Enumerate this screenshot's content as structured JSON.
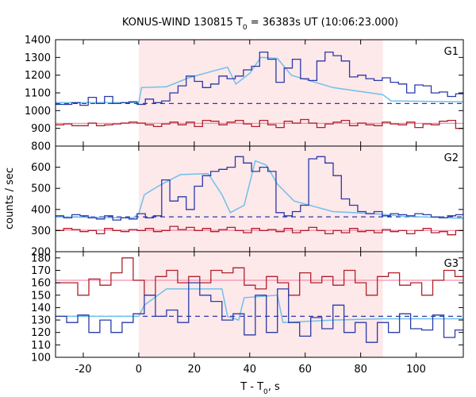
{
  "chart_data": {
    "type": "line",
    "title": {
      "prefix": "KONUS-WIND 130815 T",
      "sub": "0",
      "suffix": " = 36383s UT (10:06:23.000)"
    },
    "xlabel": {
      "prefix": "T - T",
      "sub": "0",
      "suffix": ", s"
    },
    "ylabel": "counts / sec",
    "xlim": [
      -30,
      117
    ],
    "xticks": [
      -20,
      0,
      20,
      40,
      60,
      80,
      100
    ],
    "shaded_interval": [
      0,
      88
    ],
    "colors": {
      "shade": "#fde8ea",
      "signal": "#2a3aa8",
      "signal_model": "#6ec1ea",
      "background": "#b0212a",
      "background_model": "#f48fb1"
    },
    "panels": [
      {
        "label": "G1",
        "ylim": [
          800,
          1400
        ],
        "yticks": [
          800,
          900,
          1000,
          1100,
          1200,
          1300,
          1400
        ],
        "bg_level": 1040,
        "x_start": -30,
        "bin": 2.944,
        "signal": [
          1035,
          1035,
          1045,
          1030,
          1075,
          1040,
          1080,
          1040,
          1045,
          1050,
          1035,
          1065,
          1045,
          1055,
          1100,
          1140,
          1195,
          1165,
          1130,
          1150,
          1195,
          1180,
          1195,
          1230,
          1250,
          1330,
          1290,
          1160,
          1240,
          1290,
          1180,
          1170,
          1280,
          1330,
          1310,
          1280,
          1190,
          1200,
          1180,
          1170,
          1185,
          1160,
          1150,
          1100,
          1145,
          1140,
          1100,
          1105,
          1080,
          1095,
          1075,
          1070,
          1085,
          1040,
          1050,
          1055,
          1040,
          1050,
          1060,
          1055,
          1045,
          1040,
          1040,
          1050,
          1040,
          1040
        ],
        "signal_model": [
          [
            -30,
            1045
          ],
          [
            0,
            1045
          ],
          [
            1,
            1130
          ],
          [
            10,
            1135
          ],
          [
            18,
            1185
          ],
          [
            26,
            1220
          ],
          [
            32,
            1245
          ],
          [
            35,
            1150
          ],
          [
            40,
            1210
          ],
          [
            44,
            1300
          ],
          [
            50,
            1295
          ],
          [
            55,
            1200
          ],
          [
            70,
            1130
          ],
          [
            88,
            1090
          ],
          [
            91,
            1055
          ],
          [
            117,
            1050
          ]
        ],
        "background": [
          920,
          925,
          915,
          915,
          930,
          915,
          920,
          925,
          930,
          935,
          930,
          920,
          910,
          925,
          935,
          920,
          935,
          910,
          945,
          940,
          920,
          935,
          945,
          925,
          910,
          945,
          920,
          905,
          940,
          930,
          950,
          930,
          905,
          925,
          935,
          945,
          915,
          930,
          920,
          915,
          935,
          925,
          920,
          935,
          905,
          925,
          920,
          940,
          945,
          900,
          915,
          925,
          920,
          905,
          940,
          915,
          930,
          935,
          945,
          925,
          940,
          915,
          930,
          930,
          920,
          925
        ],
        "background_model": [
          [
            -30,
            928
          ],
          [
            117,
            928
          ]
        ]
      },
      {
        "label": "G2",
        "ylim": [
          200,
          700
        ],
        "yticks": [
          200,
          300,
          400,
          500,
          600
        ],
        "bg_level": 365,
        "x_start": -30,
        "bin": 2.944,
        "signal": [
          370,
          360,
          375,
          370,
          360,
          355,
          370,
          350,
          360,
          355,
          380,
          360,
          370,
          540,
          440,
          460,
          400,
          510,
          560,
          580,
          590,
          600,
          650,
          620,
          580,
          600,
          580,
          385,
          370,
          390,
          420,
          640,
          650,
          620,
          560,
          450,
          420,
          390,
          380,
          390,
          370,
          380,
          375,
          370,
          380,
          375,
          365,
          360,
          370,
          375,
          380,
          370,
          360,
          375,
          370,
          380,
          355,
          375,
          370,
          360,
          370,
          350,
          355,
          360,
          375,
          350
        ],
        "signal_model": [
          [
            -30,
            365
          ],
          [
            -2,
            360
          ],
          [
            0,
            380
          ],
          [
            2,
            470
          ],
          [
            7,
            510
          ],
          [
            15,
            565
          ],
          [
            25,
            570
          ],
          [
            30,
            470
          ],
          [
            33,
            385
          ],
          [
            38,
            420
          ],
          [
            42,
            630
          ],
          [
            46,
            610
          ],
          [
            50,
            520
          ],
          [
            56,
            440
          ],
          [
            70,
            390
          ],
          [
            85,
            380
          ],
          [
            95,
            368
          ],
          [
            117,
            358
          ]
        ],
        "background": [
          300,
          310,
          305,
          295,
          300,
          285,
          310,
          300,
          295,
          305,
          300,
          310,
          295,
          300,
          320,
          305,
          315,
          300,
          310,
          295,
          305,
          315,
          300,
          290,
          310,
          300,
          305,
          295,
          310,
          290,
          300,
          315,
          300,
          285,
          300,
          290,
          310,
          295,
          300,
          290,
          305,
          295,
          300,
          285,
          300,
          310,
          290,
          295,
          280,
          300,
          290,
          305,
          285,
          295,
          300,
          280,
          290,
          300,
          285,
          290,
          300,
          280,
          295,
          290,
          300,
          285
        ],
        "background_model": [
          [
            -30,
            302
          ],
          [
            117,
            300
          ]
        ]
      },
      {
        "label": "G3",
        "ylim": [
          100,
          185
        ],
        "yticks": [
          100,
          110,
          120,
          130,
          140,
          150,
          160,
          170,
          180
        ],
        "bg_level": 133,
        "x_start": -30,
        "bin": 4.0,
        "signal": [
          133,
          128,
          134,
          120,
          130,
          120,
          128,
          135,
          150,
          133,
          138,
          128,
          160,
          150,
          145,
          130,
          135,
          118,
          150,
          120,
          155,
          128,
          117,
          132,
          123,
          142,
          120,
          128,
          112,
          128,
          120,
          135,
          123,
          122,
          134,
          116,
          122,
          125
        ],
        "signal_model": [
          [
            -30,
            133
          ],
          [
            0,
            133
          ],
          [
            2,
            142
          ],
          [
            10,
            155
          ],
          [
            20,
            155
          ],
          [
            30,
            155
          ],
          [
            32,
            133
          ],
          [
            36,
            130
          ],
          [
            38,
            148
          ],
          [
            50,
            150
          ],
          [
            52,
            128
          ],
          [
            70,
            130
          ],
          [
            88,
            131
          ],
          [
            117,
            131
          ]
        ],
        "background": [
          160,
          160,
          150,
          163,
          158,
          168,
          180,
          162,
          150,
          165,
          170,
          160,
          165,
          160,
          170,
          168,
          172,
          158,
          155,
          165,
          160,
          150,
          168,
          160,
          165,
          158,
          170,
          160,
          150,
          165,
          168,
          158,
          160,
          150,
          162,
          170,
          165,
          162
        ],
        "background_model": [
          [
            -30,
            162
          ],
          [
            117,
            162
          ]
        ]
      }
    ]
  }
}
